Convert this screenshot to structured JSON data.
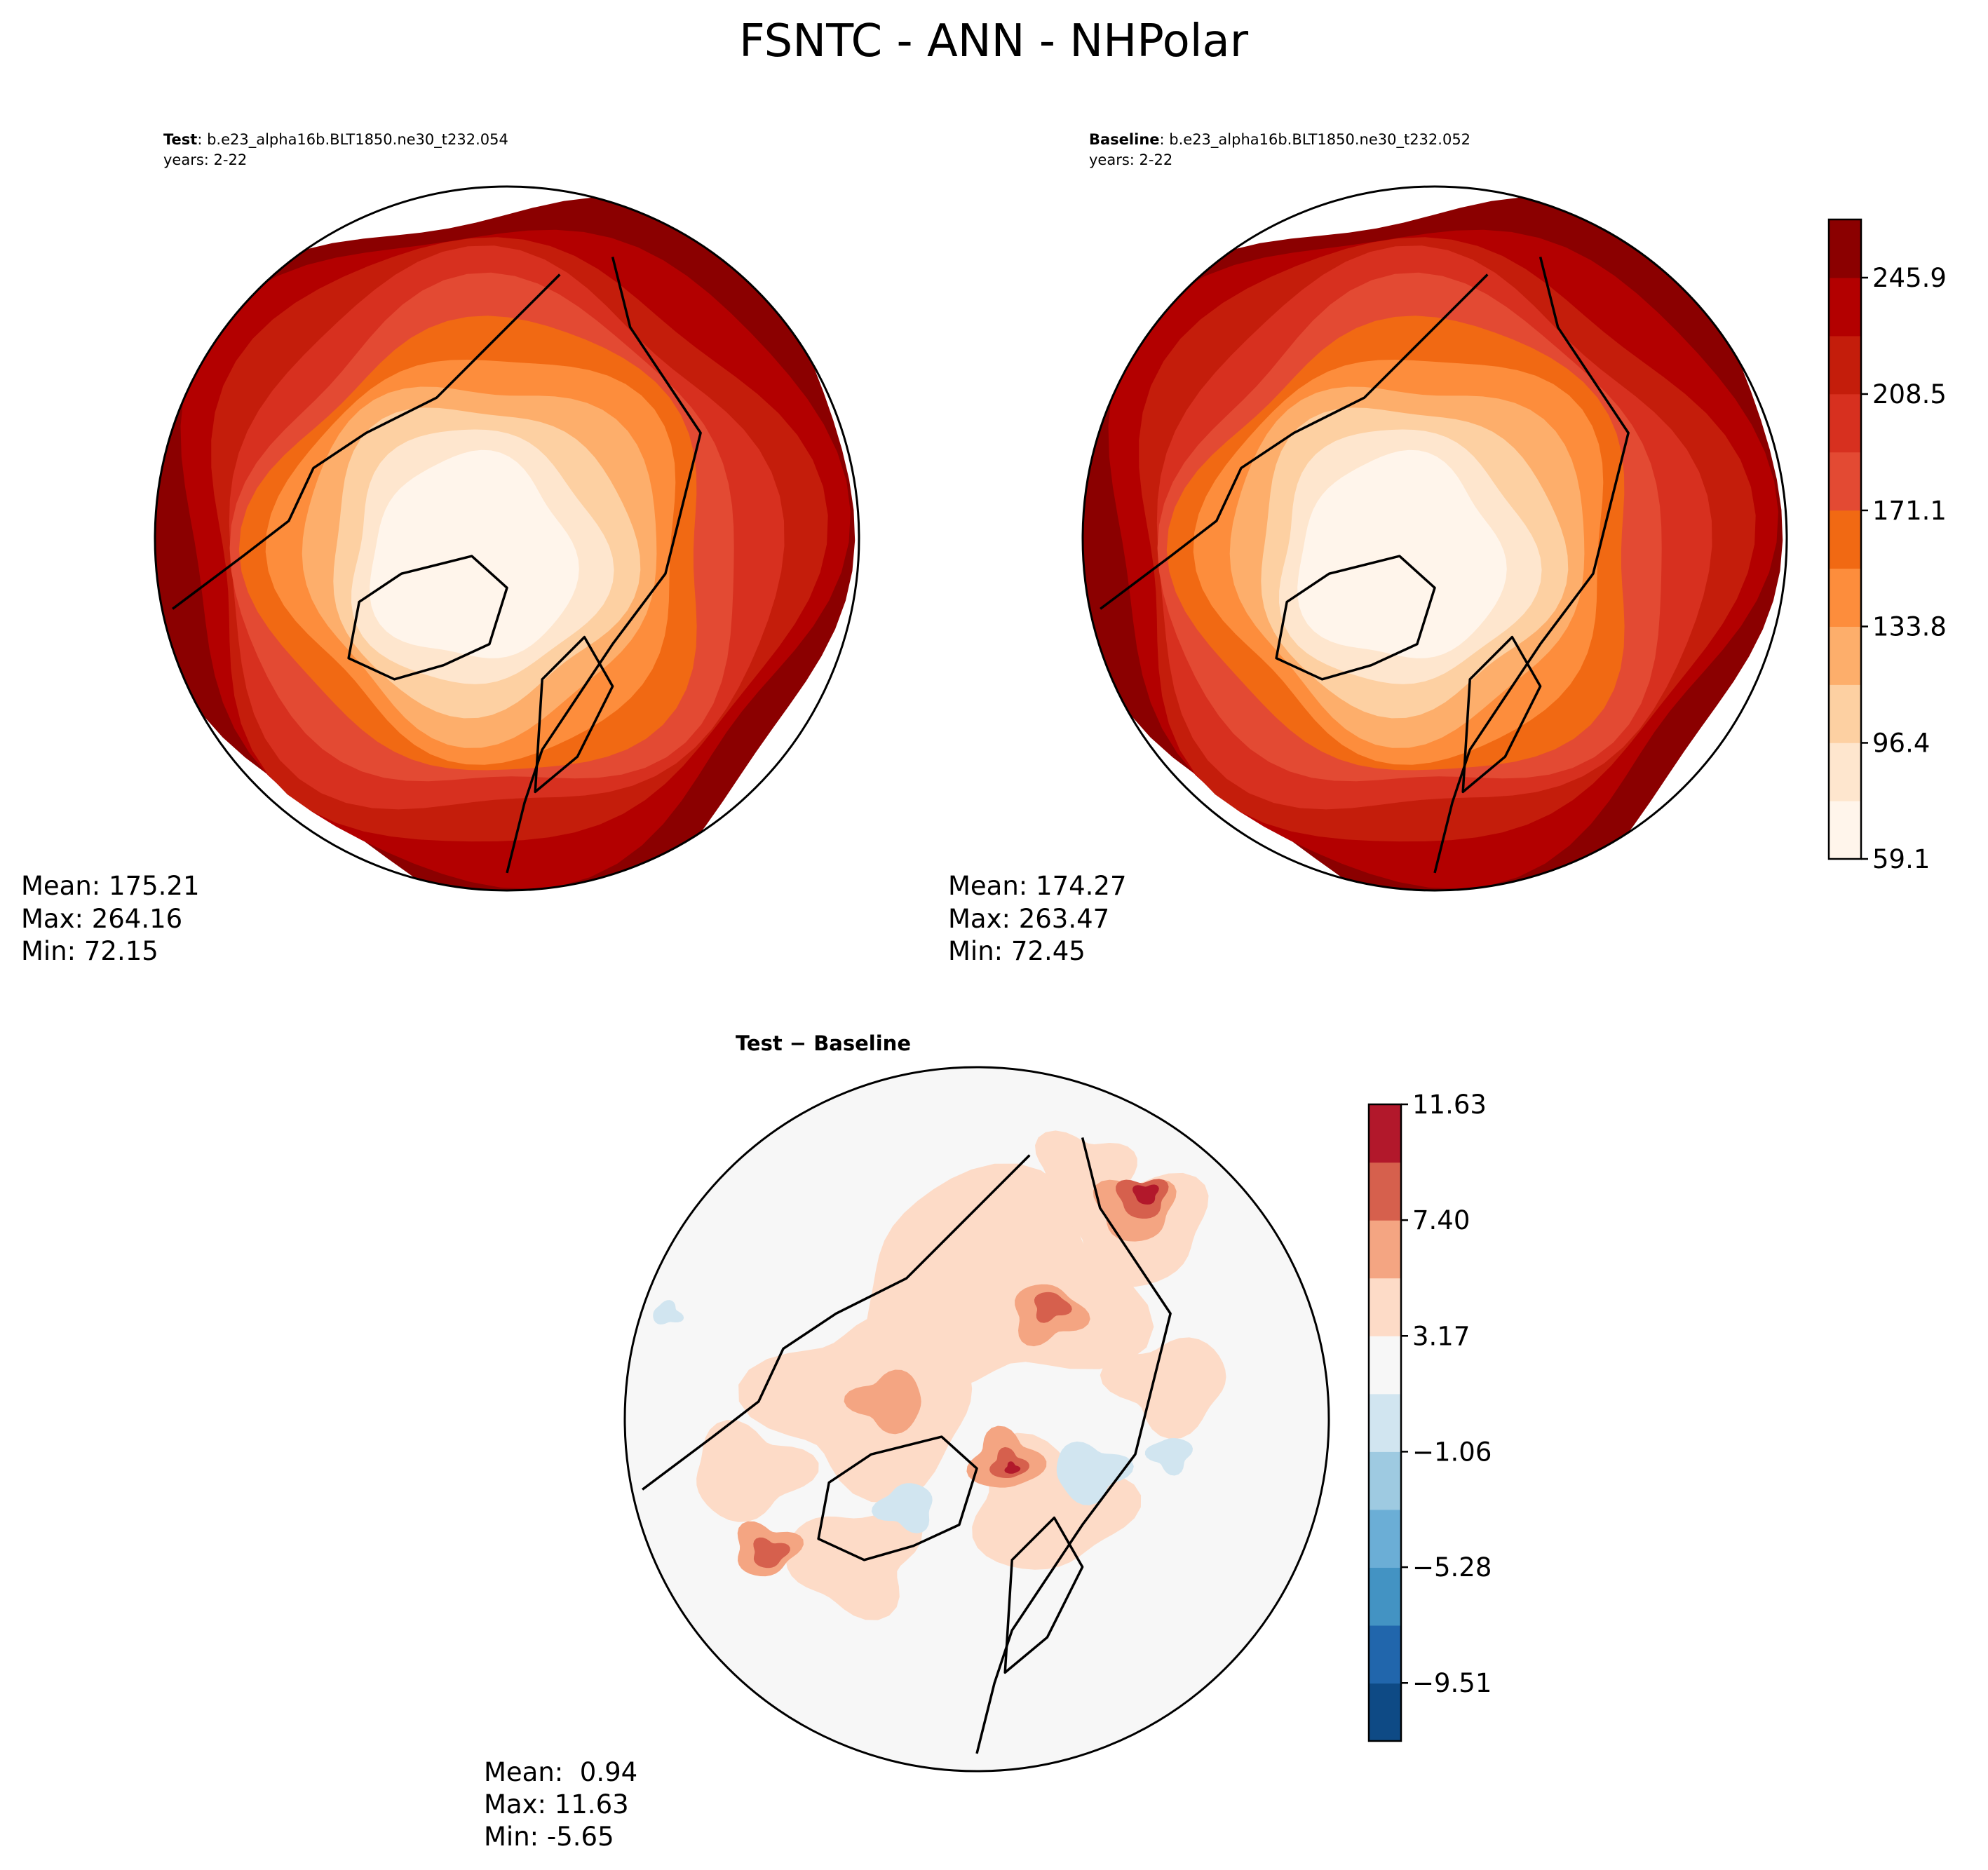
{
  "title": "FSNTC - ANN - NHPolar",
  "panels": [
    {
      "label_bold": "Test",
      "label_rest": ": b.e23_alpha16b.BLT1850.ne30_t232.054",
      "years": "years: 2-22",
      "stats": [
        "Mean: 175.21",
        "Max: 264.16",
        "Min: 72.15"
      ],
      "mean": 175.21,
      "max": 264.16,
      "min": 72.15
    },
    {
      "label_bold": "Baseline",
      "label_rest": ": b.e23_alpha16b.BLT1850.ne30_t232.052",
      "years": "years: 2-22",
      "stats": [
        "Mean: 174.27",
        "Max: 263.47",
        "Min: 72.45"
      ],
      "mean": 174.27,
      "max": 263.47,
      "min": 72.45
    },
    {
      "label_bold": "Test − Baseline",
      "stats": [
        "Mean:  0.94",
        "Max: 11.63",
        "Min: -5.65"
      ],
      "mean": 0.94,
      "max": 11.63,
      "min": -5.65
    }
  ],
  "chart_data": [
    {
      "type": "heatmap",
      "projection": "north-polar-stereographic",
      "colorbar": {
        "ticks": [
          "59.1",
          "96.4",
          "133.8",
          "171.1",
          "208.5",
          "245.9"
        ],
        "levels": [
          59.1,
          77.8,
          96.4,
          115.1,
          133.8,
          152.5,
          171.1,
          189.8,
          208.5,
          227.2,
          245.9,
          264.6
        ],
        "colors": [
          "#fff5eb",
          "#fee6ce",
          "#fdd0a2",
          "#fdae6b",
          "#fd8d3c",
          "#f16913",
          "#e34a33",
          "#d7301f",
          "#c41d0b",
          "#b30000",
          "#8b0000"
        ]
      }
    },
    {
      "type": "heatmap",
      "projection": "north-polar-stereographic",
      "colorbar": {
        "ticks": [
          "11.63",
          "7.40",
          "3.17",
          "−1.06",
          "−5.28",
          "−9.51"
        ],
        "levels": [
          -11.63,
          -9.51,
          -7.4,
          -5.28,
          -3.17,
          -1.06,
          1.06,
          3.17,
          5.28,
          7.4,
          9.51,
          11.63
        ],
        "colors": [
          "#0e4a85",
          "#2166ac",
          "#4393c3",
          "#6baed6",
          "#9ecae1",
          "#d1e5f0",
          "#f7f7f7",
          "#fddbc7",
          "#f4a582",
          "#d6604d",
          "#b2182b"
        ]
      }
    }
  ]
}
